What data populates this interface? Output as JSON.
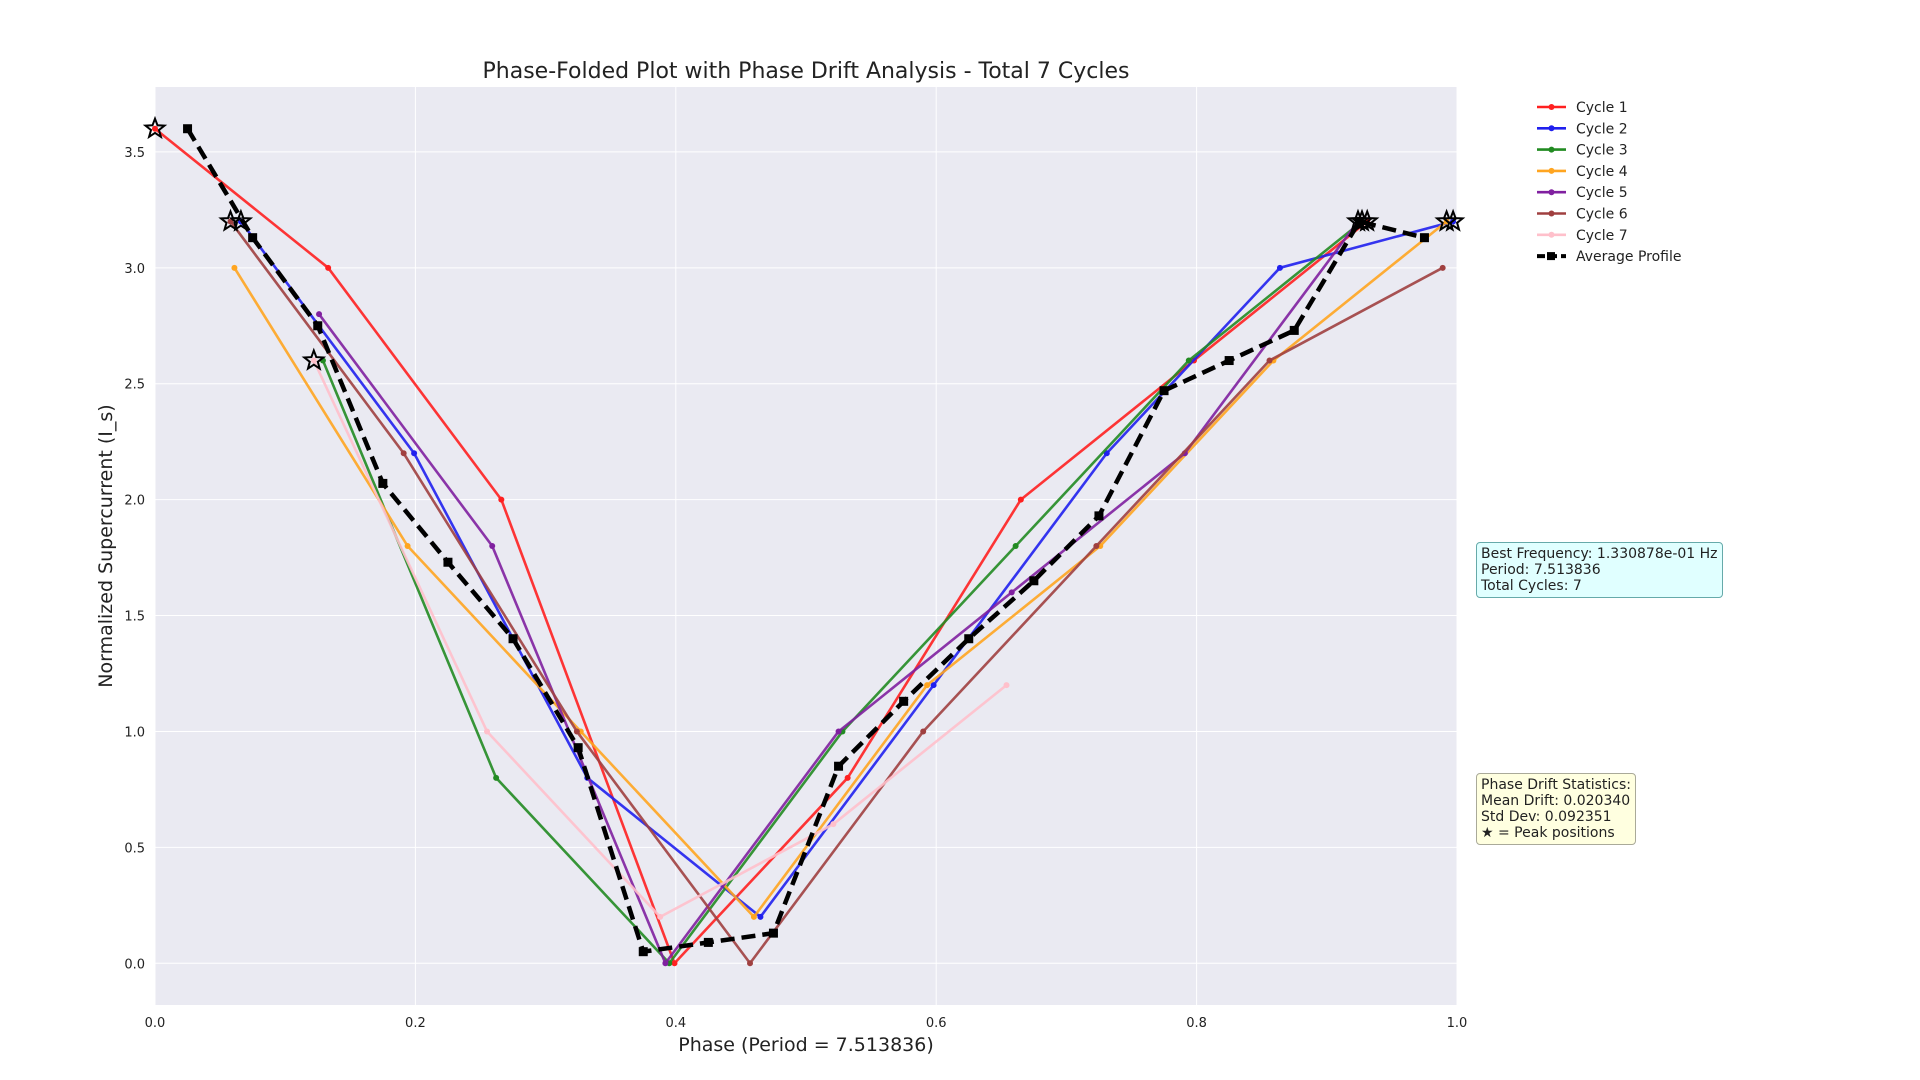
{
  "chart_data": {
    "type": "line",
    "title": "Phase-Folded Plot with Phase Drift Analysis - Total 7 Cycles",
    "xlabel": "Phase (Period = 7.513836)",
    "ylabel": "Normalized Supercurrent (I_s)",
    "xlim": [
      0.0,
      1.0
    ],
    "ylim": [
      -0.18,
      3.78
    ],
    "xticks": [
      "0.0",
      "0.2",
      "0.4",
      "0.6",
      "0.8",
      "1.0"
    ],
    "xtick_values": [
      0.0,
      0.2,
      0.4,
      0.6,
      0.8,
      1.0
    ],
    "yticks": [
      "0.0",
      "0.5",
      "1.0",
      "1.5",
      "2.0",
      "2.5",
      "3.0",
      "3.5"
    ],
    "ytick_values": [
      0.0,
      0.5,
      1.0,
      1.5,
      2.0,
      2.5,
      3.0,
      3.5
    ],
    "grid": true,
    "legend_position": "outside-top-right",
    "series": [
      {
        "name": "Cycle 1",
        "color": "#ff2020",
        "style": "solid",
        "x": [
          0.0,
          0.133,
          0.266,
          0.399,
          0.532,
          0.665,
          0.798,
          0.931
        ],
        "y": [
          3.6,
          3.0,
          2.0,
          0.0,
          0.8,
          2.0,
          2.6,
          3.2
        ]
      },
      {
        "name": "Cycle 2",
        "color": "#2020ee",
        "style": "solid",
        "x": [
          0.066,
          0.199,
          0.332,
          0.465,
          0.598,
          0.731,
          0.864,
          0.997
        ],
        "y": [
          3.2,
          2.2,
          0.8,
          0.2,
          1.2,
          2.2,
          3.0,
          3.2
        ]
      },
      {
        "name": "Cycle 3",
        "color": "#228b22",
        "style": "solid",
        "x": [
          0.129,
          0.262,
          0.395,
          0.528,
          0.661,
          0.794,
          0.927
        ],
        "y": [
          2.6,
          0.8,
          0.0,
          1.0,
          1.8,
          2.6,
          3.2
        ]
      },
      {
        "name": "Cycle 4",
        "color": "#ffa520",
        "style": "solid",
        "x": [
          0.061,
          0.194,
          0.327,
          0.46,
          0.593,
          0.726,
          0.859,
          0.992
        ],
        "y": [
          3.0,
          1.8,
          1.0,
          0.2,
          1.2,
          1.8,
          2.6,
          3.2
        ]
      },
      {
        "name": "Cycle 5",
        "color": "#8020a0",
        "style": "solid",
        "x": [
          0.126,
          0.259,
          0.392,
          0.525,
          0.658,
          0.791,
          0.924
        ],
        "y": [
          2.8,
          1.8,
          0.0,
          1.0,
          1.6,
          2.2,
          3.2
        ]
      },
      {
        "name": "Cycle 6",
        "color": "#a04040",
        "style": "solid",
        "x": [
          0.058,
          0.191,
          0.324,
          0.457,
          0.59,
          0.723,
          0.856,
          0.989
        ],
        "y": [
          3.2,
          2.2,
          1.0,
          0.0,
          1.0,
          1.8,
          2.6,
          3.0
        ]
      },
      {
        "name": "Cycle 7",
        "color": "#ffc0cb",
        "style": "solid",
        "x": [
          0.122,
          0.255,
          0.388,
          0.521,
          0.654
        ],
        "y": [
          2.6,
          1.0,
          0.2,
          0.6,
          1.2
        ]
      },
      {
        "name": "Average Profile",
        "color": "#000000",
        "style": "dashed",
        "x": [
          0.025,
          0.075,
          0.125,
          0.175,
          0.225,
          0.275,
          0.325,
          0.375,
          0.425,
          0.475,
          0.525,
          0.575,
          0.625,
          0.675,
          0.725,
          0.775,
          0.825,
          0.875,
          0.925,
          0.975
        ],
        "y": [
          3.6,
          3.13,
          2.75,
          2.07,
          1.73,
          1.4,
          0.93,
          0.05,
          0.09,
          0.13,
          0.85,
          1.13,
          1.4,
          1.65,
          1.93,
          2.47,
          2.6,
          2.73,
          3.2,
          3.13
        ]
      }
    ],
    "peak_markers": {
      "x": [
        0.0,
        0.058,
        0.066,
        0.122,
        0.924,
        0.927,
        0.931,
        0.992,
        0.997
      ],
      "y": [
        3.6,
        3.2,
        3.2,
        2.6,
        3.2,
        3.2,
        3.2,
        3.2,
        3.2
      ]
    },
    "annotations": {
      "frequency_box": [
        "Best Frequency: 1.330878e-01 Hz",
        "Period: 7.513836",
        "Total Cycles: 7"
      ],
      "drift_box": [
        "Phase Drift Statistics:",
        "Mean Drift: 0.020340",
        "Std Dev: 0.092351",
        "★ = Peak positions"
      ]
    }
  }
}
